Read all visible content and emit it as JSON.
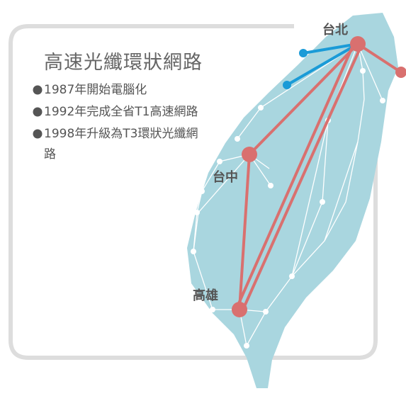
{
  "title": "高速光纖環狀網路",
  "milestones": [
    "1987年開始電腦化",
    "1992年完成全省T1高速網路",
    "1998年升級為T3環狀光纖網路"
  ],
  "cities": [
    "台北",
    "台中",
    "高雄"
  ]
}
